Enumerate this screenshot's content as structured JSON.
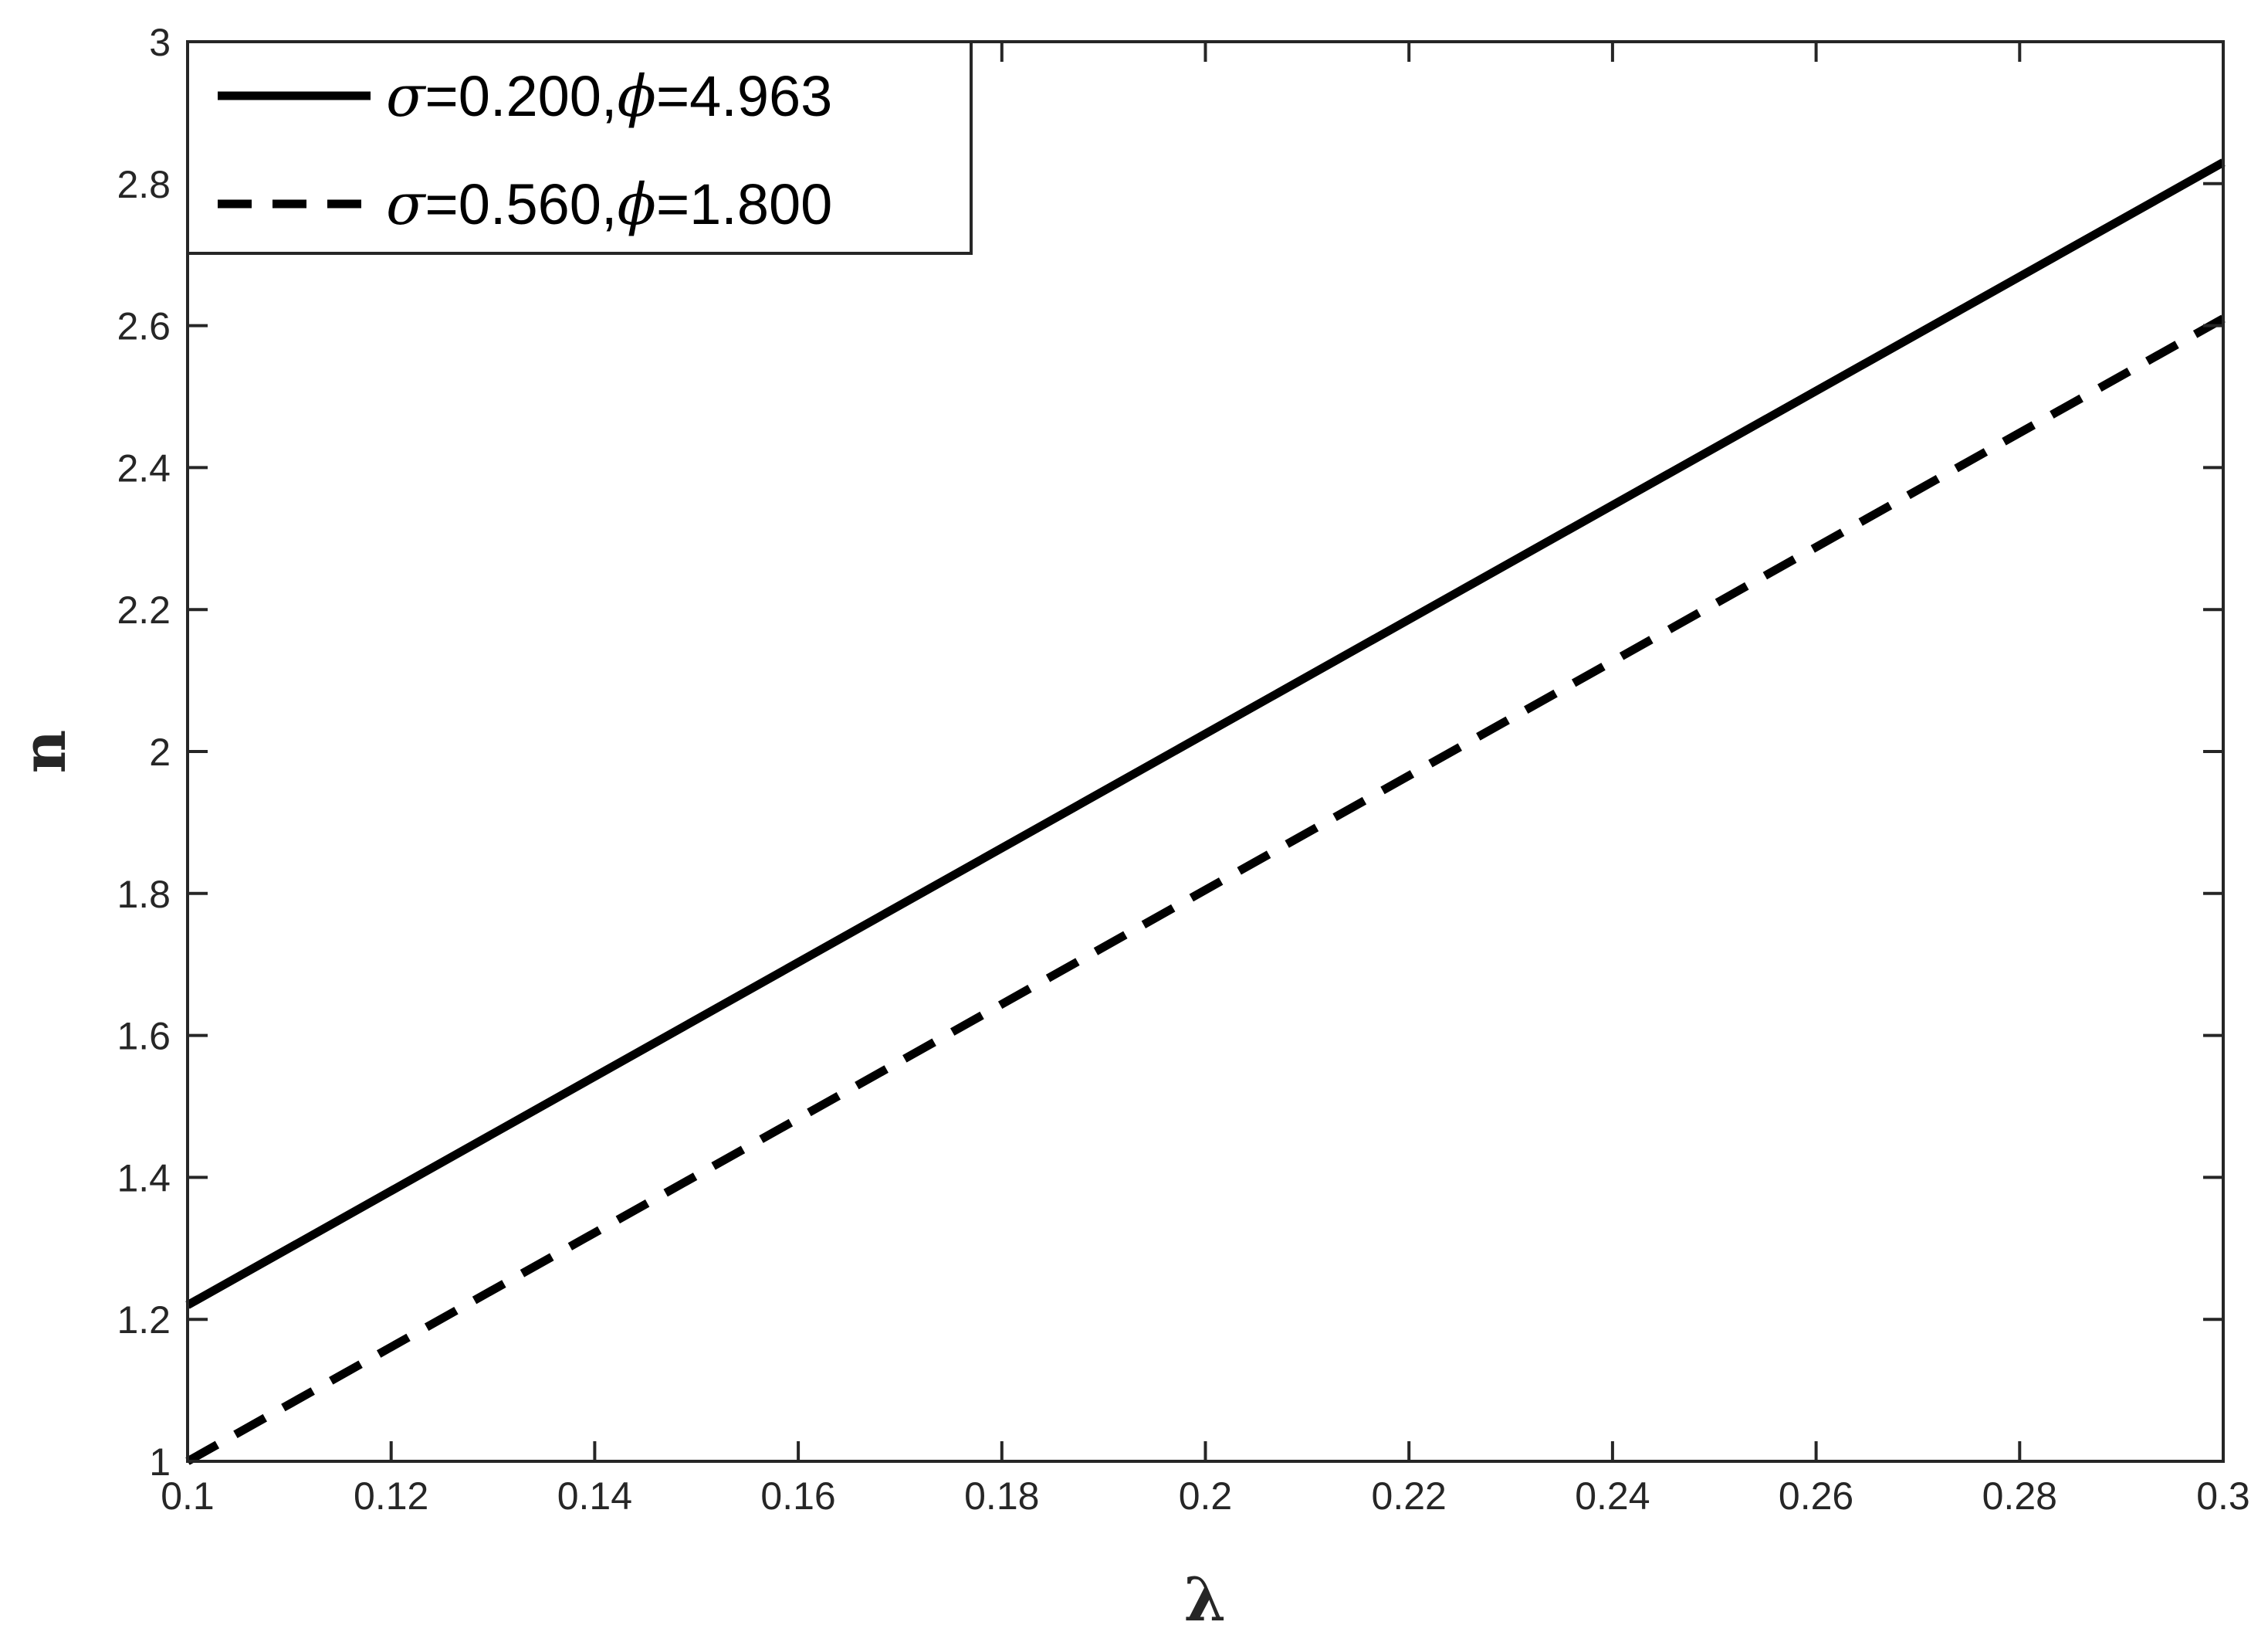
{
  "chart_data": {
    "type": "line",
    "xlabel": "λ",
    "ylabel": "n",
    "xlim": [
      0.1,
      0.3
    ],
    "ylim": [
      1,
      3
    ],
    "x_ticks": [
      "0.1",
      "0.12",
      "0.14",
      "0.16",
      "0.18",
      "0.2",
      "0.22",
      "0.24",
      "0.26",
      "0.28",
      "0.3"
    ],
    "y_ticks": [
      "1",
      "1.2",
      "1.4",
      "1.6",
      "1.8",
      "2",
      "2.2",
      "2.4",
      "2.6",
      "2.8",
      "3"
    ],
    "grid": false,
    "legend_position": "top-left",
    "series": [
      {
        "name": "σ=0.200,ϕ=4.963",
        "label_parts": [
          "σ",
          "=0.200,",
          "ϕ",
          "=4.963"
        ],
        "style": "solid",
        "color": "#000000",
        "x": [
          0.1,
          0.3
        ],
        "y": [
          1.22,
          2.83
        ]
      },
      {
        "name": "σ=0.560,ϕ=1.800",
        "label_parts": [
          "σ",
          "=0.560,",
          "ϕ",
          "=1.800"
        ],
        "style": "dashed",
        "color": "#000000",
        "x": [
          0.1,
          0.3
        ],
        "y": [
          1.0,
          2.61
        ]
      }
    ]
  }
}
